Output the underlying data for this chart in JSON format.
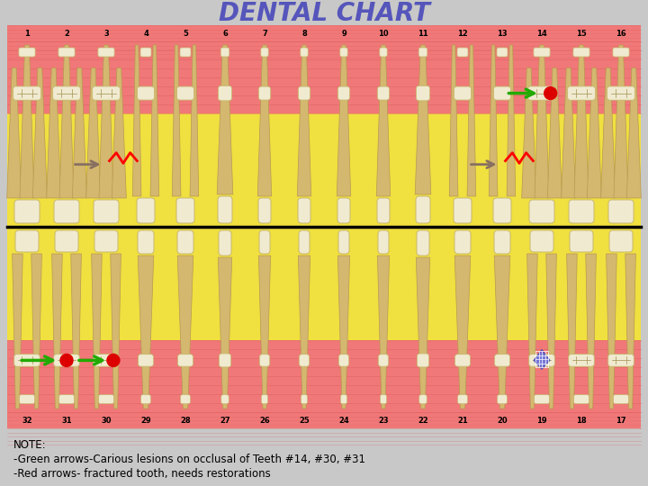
{
  "title": "DENTAL CHART",
  "title_fontsize": 20,
  "title_color": "#5555bb",
  "bg_color": "#c8c8c8",
  "pink_color": "#f07878",
  "yellow_color": "#f0e040",
  "line_color": "#e06060",
  "note_lines": [
    "NOTE:",
    "-Green arrows-Carious lesions on occlusal of Teeth #14, #30, #31",
    "-Red arrows- fractured tooth, needs restorations"
  ],
  "note_fontsize": 8.5,
  "upper_nums": [
    1,
    2,
    3,
    4,
    5,
    6,
    7,
    8,
    9,
    10,
    11,
    12,
    13,
    14,
    15,
    16
  ],
  "lower_nums": [
    32,
    31,
    30,
    29,
    28,
    27,
    26,
    25,
    24,
    23,
    22,
    21,
    20,
    19,
    18,
    17
  ],
  "tooth_color": "#f0ead0",
  "tooth_edge": "#c8b870",
  "root_color": "#d4b870",
  "root_edge": "#b89850"
}
